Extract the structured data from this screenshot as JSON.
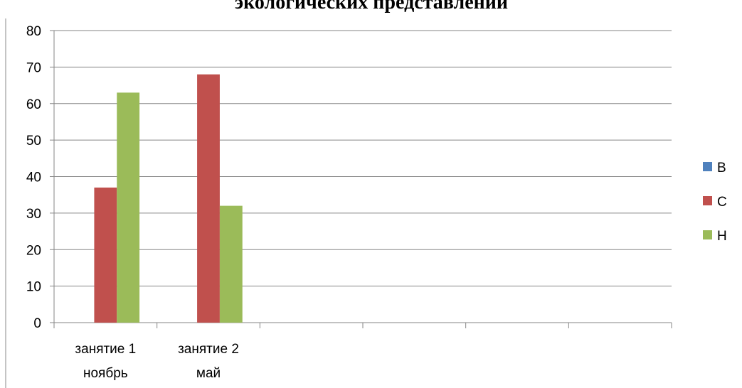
{
  "title": "экологических представлений",
  "chart_data": {
    "type": "bar",
    "categories": [
      [
        "занятие 1",
        "ноябрь"
      ],
      [
        "занятие 2",
        "май"
      ],
      [],
      [],
      [],
      []
    ],
    "series": [
      {
        "name": "В",
        "color": "#4f81bd",
        "values": [
          0,
          0,
          null,
          null,
          null,
          null
        ]
      },
      {
        "name": "С",
        "color": "#c0504d",
        "values": [
          37,
          68,
          null,
          null,
          null,
          null
        ]
      },
      {
        "name": "Н",
        "color": "#9bbb59",
        "values": [
          63,
          32,
          null,
          null,
          null,
          null
        ]
      }
    ],
    "ylim": [
      0,
      80
    ],
    "yticks": [
      0,
      10,
      20,
      30,
      40,
      50,
      60,
      70,
      80
    ],
    "grid": true,
    "legend": "right"
  }
}
